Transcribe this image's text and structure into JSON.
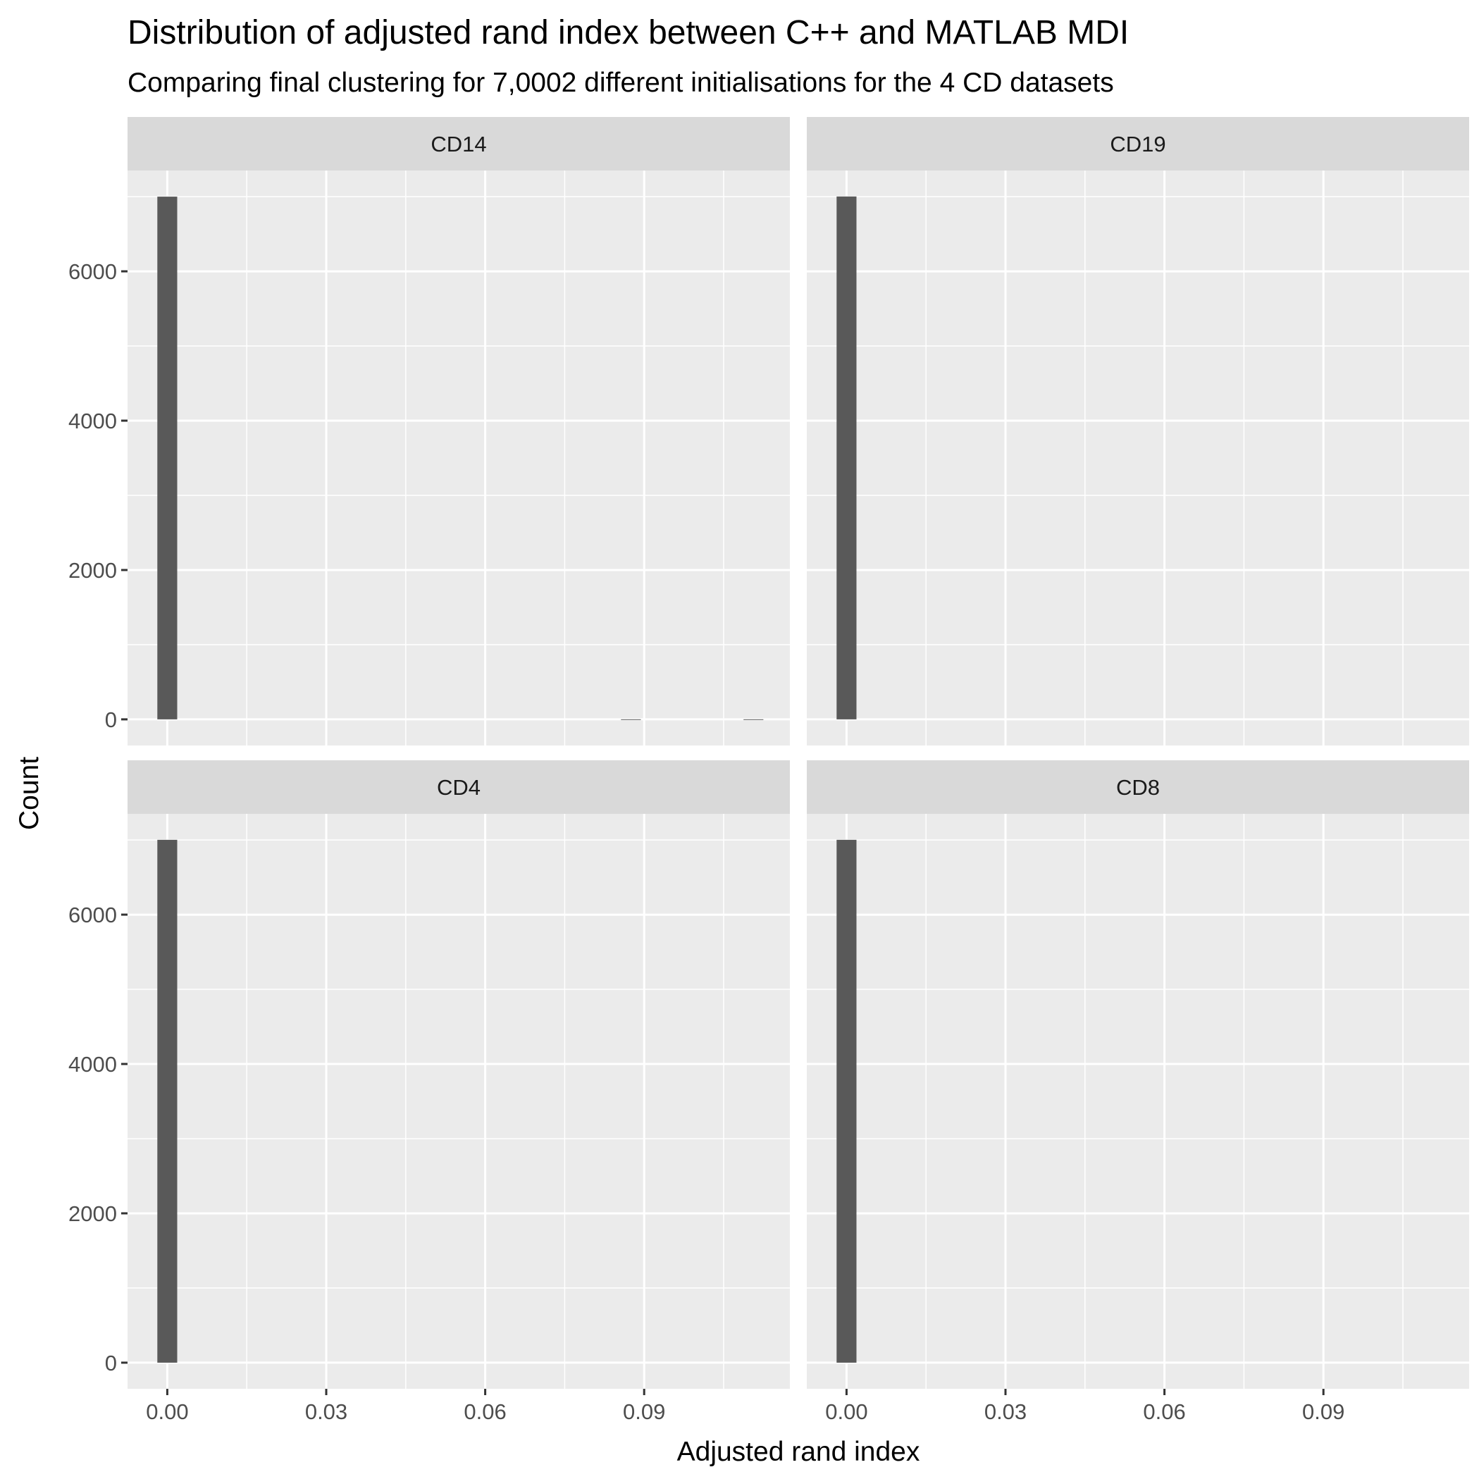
{
  "chart_data": {
    "type": "bar",
    "title": "Distribution of adjusted rand index between C++ and MATLAB MDI",
    "subtitle": "Comparing final clustering for 7,0002 different initialisations for the 4 CD datasets",
    "xlabel": "Adjusted rand index",
    "ylabel": "Count",
    "xlim": [
      -0.0075,
      0.1175
    ],
    "ylim": [
      -350,
      7350
    ],
    "x_ticks": [
      0.0,
      0.03,
      0.06,
      0.09
    ],
    "x_tick_labels": [
      "0.00",
      "0.03",
      "0.06",
      "0.09"
    ],
    "y_ticks": [
      0,
      2000,
      4000,
      6000
    ],
    "y_tick_labels": [
      "0",
      "2000",
      "4000",
      "6000"
    ],
    "bin_width": 0.00375,
    "grid": true,
    "bar_color": "#595959",
    "panel_background": "#ebebeb",
    "strip_background": "#d9d9d9",
    "panels": [
      {
        "label": "CD14",
        "bars": [
          {
            "x": 0.0,
            "count": 7000
          },
          {
            "x": 0.0875,
            "count": 1
          },
          {
            "x": 0.110625,
            "count": 1
          }
        ]
      },
      {
        "label": "CD19",
        "bars": [
          {
            "x": 0.0,
            "count": 7002
          }
        ]
      },
      {
        "label": "CD4",
        "bars": [
          {
            "x": 0.0,
            "count": 7002
          }
        ]
      },
      {
        "label": "CD8",
        "bars": [
          {
            "x": 0.0,
            "count": 7002
          }
        ]
      }
    ]
  }
}
